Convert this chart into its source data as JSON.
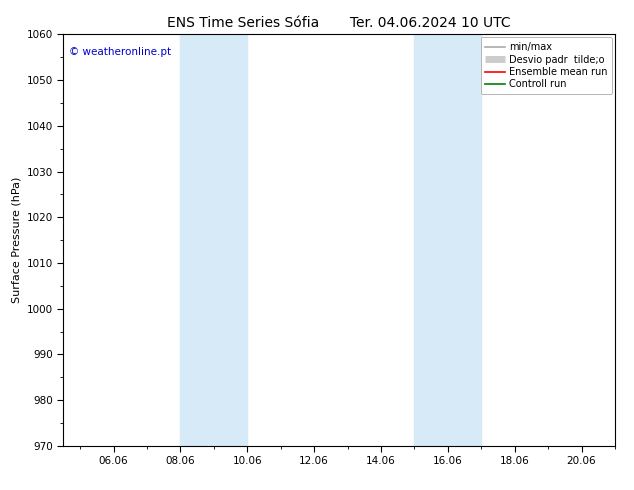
{
  "title": "ENS Time Series Sófia       Ter. 04.06.2024 10 UTC",
  "ylabel": "Surface Pressure (hPa)",
  "watermark": "© weatheronline.pt",
  "watermark_color": "#0000cc",
  "ylim": [
    970,
    1060
  ],
  "yticks": [
    970,
    980,
    990,
    1000,
    1010,
    1020,
    1030,
    1040,
    1050,
    1060
  ],
  "xlim_start": 4.5,
  "xlim_end": 21.0,
  "xtick_positions": [
    6.0,
    8.0,
    10.0,
    12.0,
    14.0,
    16.0,
    18.0,
    20.0
  ],
  "xtick_labels": [
    "06.06",
    "08.06",
    "10.06",
    "12.06",
    "14.06",
    "16.06",
    "18.06",
    "20.06"
  ],
  "shaded_bands": [
    {
      "xmin": 8.0,
      "xmax": 10.0
    },
    {
      "xmin": 15.0,
      "xmax": 17.0
    }
  ],
  "band_color": "#d6eaf8",
  "background_color": "#ffffff",
  "legend_entries": [
    {
      "label": "min/max",
      "color": "#aaaaaa",
      "lw": 1.2,
      "type": "line"
    },
    {
      "label": "Desvio padr  tilde;o",
      "color": "#cccccc",
      "lw": 5,
      "type": "band"
    },
    {
      "label": "Ensemble mean run",
      "color": "#ff0000",
      "lw": 1.2,
      "type": "line"
    },
    {
      "label": "Controll run",
      "color": "#008000",
      "lw": 1.2,
      "type": "line"
    }
  ],
  "title_fontsize": 10,
  "axis_label_fontsize": 8,
  "tick_fontsize": 7.5,
  "legend_fontsize": 7,
  "watermark_fontsize": 7.5
}
